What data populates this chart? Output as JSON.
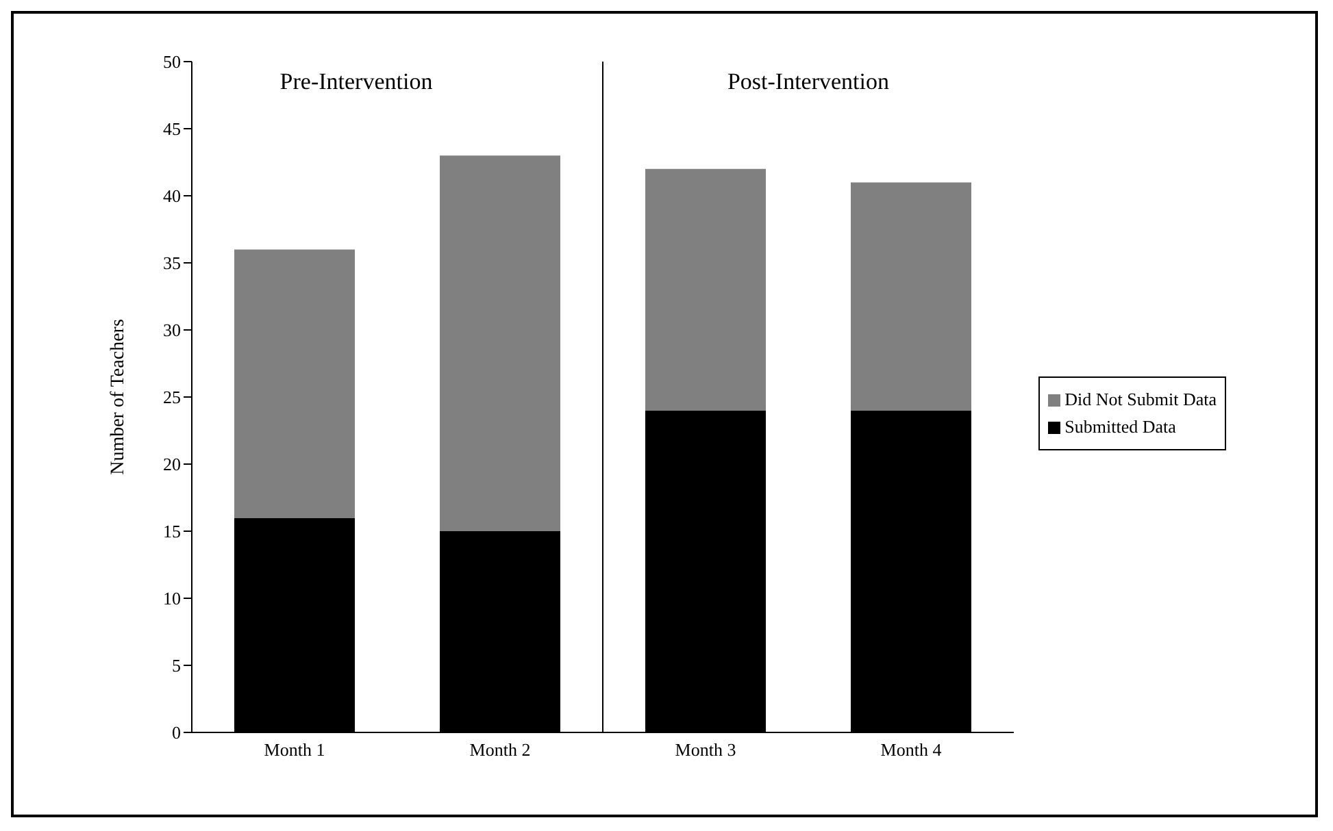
{
  "chart_data": {
    "type": "bar",
    "stacked": true,
    "categories": [
      "Month 1",
      "Month 2",
      "Month 3",
      "Month 4"
    ],
    "series": [
      {
        "name": "Submitted Data",
        "color": "#000000",
        "values": [
          16,
          15,
          24,
          24
        ]
      },
      {
        "name": "Did Not Submit Data",
        "color": "#808080",
        "values": [
          20,
          28,
          18,
          17
        ]
      }
    ],
    "ylabel": "Number of Teachers",
    "ylim": [
      0,
      50
    ],
    "yticks": [
      0,
      5,
      10,
      15,
      20,
      25,
      30,
      35,
      40,
      45,
      50
    ],
    "grid": false,
    "legend": "right",
    "annotations": [
      "Pre-Intervention",
      "Post-Intervention"
    ]
  }
}
